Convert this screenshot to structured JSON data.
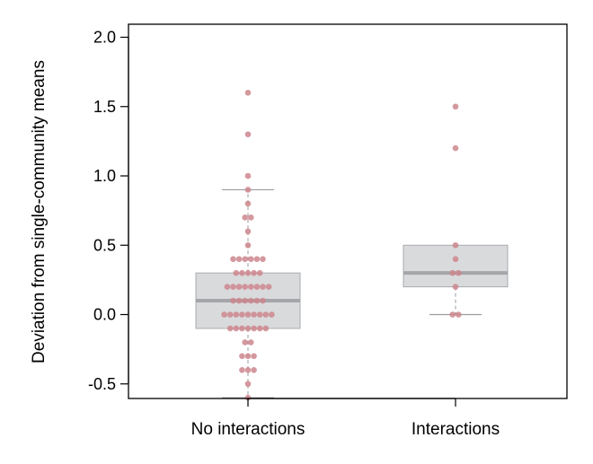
{
  "chart_data": {
    "type": "box",
    "ylabel": "Deviation from single-community means",
    "xlabel": "",
    "categories": [
      "No interactions",
      "Interactions"
    ],
    "ylim": [
      -0.6,
      2.1
    ],
    "yticks": [
      "-0.5",
      "0.0",
      "0.5",
      "1.0",
      "1.5",
      "2.0"
    ],
    "ytick_values": [
      -0.5,
      0.0,
      0.5,
      1.0,
      1.5,
      2.0
    ],
    "grid": false,
    "colors": {
      "box_fill": "#d9dadc",
      "box_stroke": "#a9abae",
      "median": "#a4a6a9",
      "points": "#cd868d"
    },
    "boxes": [
      {
        "category": "No interactions",
        "q1": -0.1,
        "median": 0.1,
        "q3": 0.3,
        "whisker_low": -0.6,
        "whisker_high": 0.9
      },
      {
        "category": "Interactions",
        "q1": 0.2,
        "median": 0.3,
        "q3": 0.5,
        "whisker_low": 0.0,
        "whisker_high": 0.5
      }
    ],
    "points": [
      {
        "category": "No interactions",
        "values": [
          1.6,
          1.3,
          1.0,
          0.9,
          0.8,
          0.7,
          0.7,
          0.6,
          0.5,
          0.4,
          0.4,
          0.4,
          0.4,
          0.4,
          0.4,
          0.3,
          0.3,
          0.3,
          0.3,
          0.3,
          0.2,
          0.2,
          0.2,
          0.2,
          0.2,
          0.2,
          0.2,
          0.2,
          0.1,
          0.1,
          0.1,
          0.1,
          0.1,
          0.1,
          0.0,
          0.0,
          0.0,
          0.0,
          0.0,
          0.0,
          0.0,
          0.0,
          0.0,
          -0.1,
          -0.1,
          -0.1,
          -0.1,
          -0.1,
          -0.1,
          -0.1,
          -0.2,
          -0.2,
          -0.3,
          -0.3,
          -0.3,
          -0.4,
          -0.4,
          -0.4,
          -0.5,
          -0.6
        ]
      },
      {
        "category": "Interactions",
        "values": [
          1.5,
          1.2,
          0.5,
          0.4,
          0.3,
          0.3,
          0.2,
          0.0,
          0.0
        ]
      }
    ]
  }
}
